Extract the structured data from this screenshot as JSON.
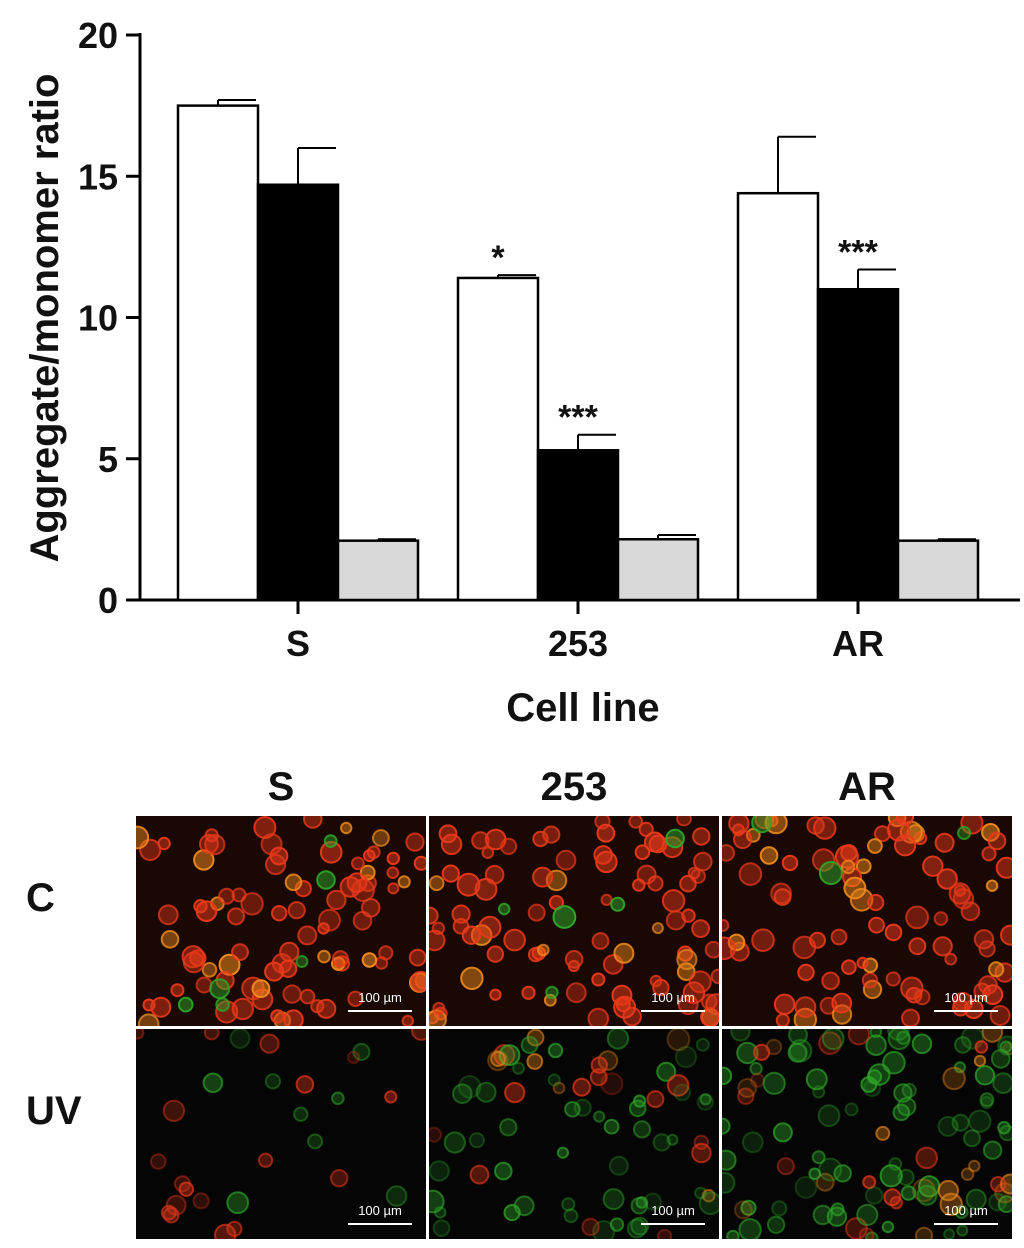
{
  "chart_data": {
    "type": "bar",
    "ylabel": "Aggregate/monomer ratio",
    "xlabel": "Cell line",
    "categories": [
      "S",
      "253",
      "AR"
    ],
    "ylim": [
      0,
      20
    ],
    "yticks": [
      0,
      5,
      10,
      15,
      20
    ],
    "series": [
      {
        "fill": "#ffffff",
        "values": [
          17.5,
          11.4,
          14.4
        ],
        "errors": [
          0.2,
          0.1,
          2.0
        ]
      },
      {
        "fill": "#000000",
        "values": [
          14.7,
          5.3,
          11.0
        ],
        "errors": [
          1.3,
          0.55,
          0.7
        ]
      },
      {
        "fill": "#d9d9d9",
        "values": [
          2.1,
          2.15,
          2.1
        ],
        "errors": [
          0.05,
          0.15,
          0.05
        ]
      }
    ],
    "annotations": [
      {
        "category": "253",
        "series_index": 0,
        "text": "*"
      },
      {
        "category": "253",
        "series_index": 1,
        "text": "***"
      },
      {
        "category": "AR",
        "series_index": 1,
        "text": "***"
      }
    ]
  },
  "micrographs": {
    "columns": [
      "S",
      "253",
      "AR"
    ],
    "rows": [
      "C",
      "UV"
    ],
    "scale_label": "100  µm",
    "colors": {
      "red": "#e8391a",
      "orange": "#f08a1c",
      "green": "#2fa82a",
      "background": "#050505"
    }
  }
}
